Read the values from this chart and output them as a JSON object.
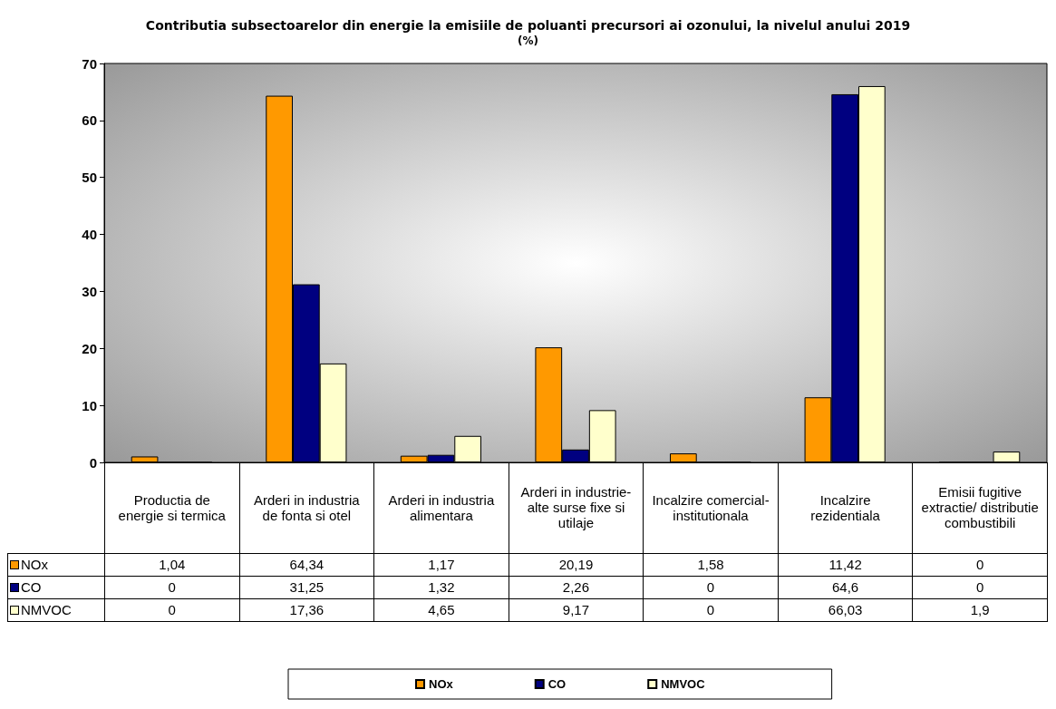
{
  "chart_data": {
    "type": "bar",
    "title": "Contributia subsectoarelor din energie la emisiile de poluanti precursori ai ozonului, la nivelul anului 2019",
    "subtitle": "(%)",
    "categories": [
      "Productia de energie si termica",
      "Arderi in industria de fonta si otel",
      "Arderi in industria alimentara",
      "Arderi in industrie-alte surse fixe si utilaje",
      "Incalzire comercial-institutionala",
      "Incalzire rezidentiala",
      "Emisii fugitive extractie/ distributie combustibili"
    ],
    "series": [
      {
        "name": "NOx",
        "color": "#ff9900",
        "values": [
          1.04,
          64.34,
          1.17,
          20.19,
          1.58,
          11.42,
          0
        ],
        "value_labels": [
          "1,04",
          "64,34",
          "1,17",
          "20,19",
          "1,58",
          "11,42",
          "0"
        ]
      },
      {
        "name": "CO",
        "color": "#000080",
        "values": [
          0,
          31.25,
          1.32,
          2.26,
          0,
          64.6,
          0
        ],
        "value_labels": [
          "0",
          "31,25",
          "1,32",
          "2,26",
          "0",
          "64,6",
          "0"
        ]
      },
      {
        "name": "NMVOC",
        "color": "#ffffcc",
        "values": [
          0,
          17.36,
          4.65,
          9.17,
          0,
          66.03,
          1.9
        ],
        "value_labels": [
          "0",
          "17,36",
          "4,65",
          "9,17",
          "0",
          "66,03",
          "1,9"
        ]
      }
    ],
    "ylim": [
      0,
      70
    ],
    "yticks": [
      0,
      10,
      20,
      30,
      40,
      50,
      60,
      70
    ],
    "grid": false,
    "legend": "bottom"
  }
}
